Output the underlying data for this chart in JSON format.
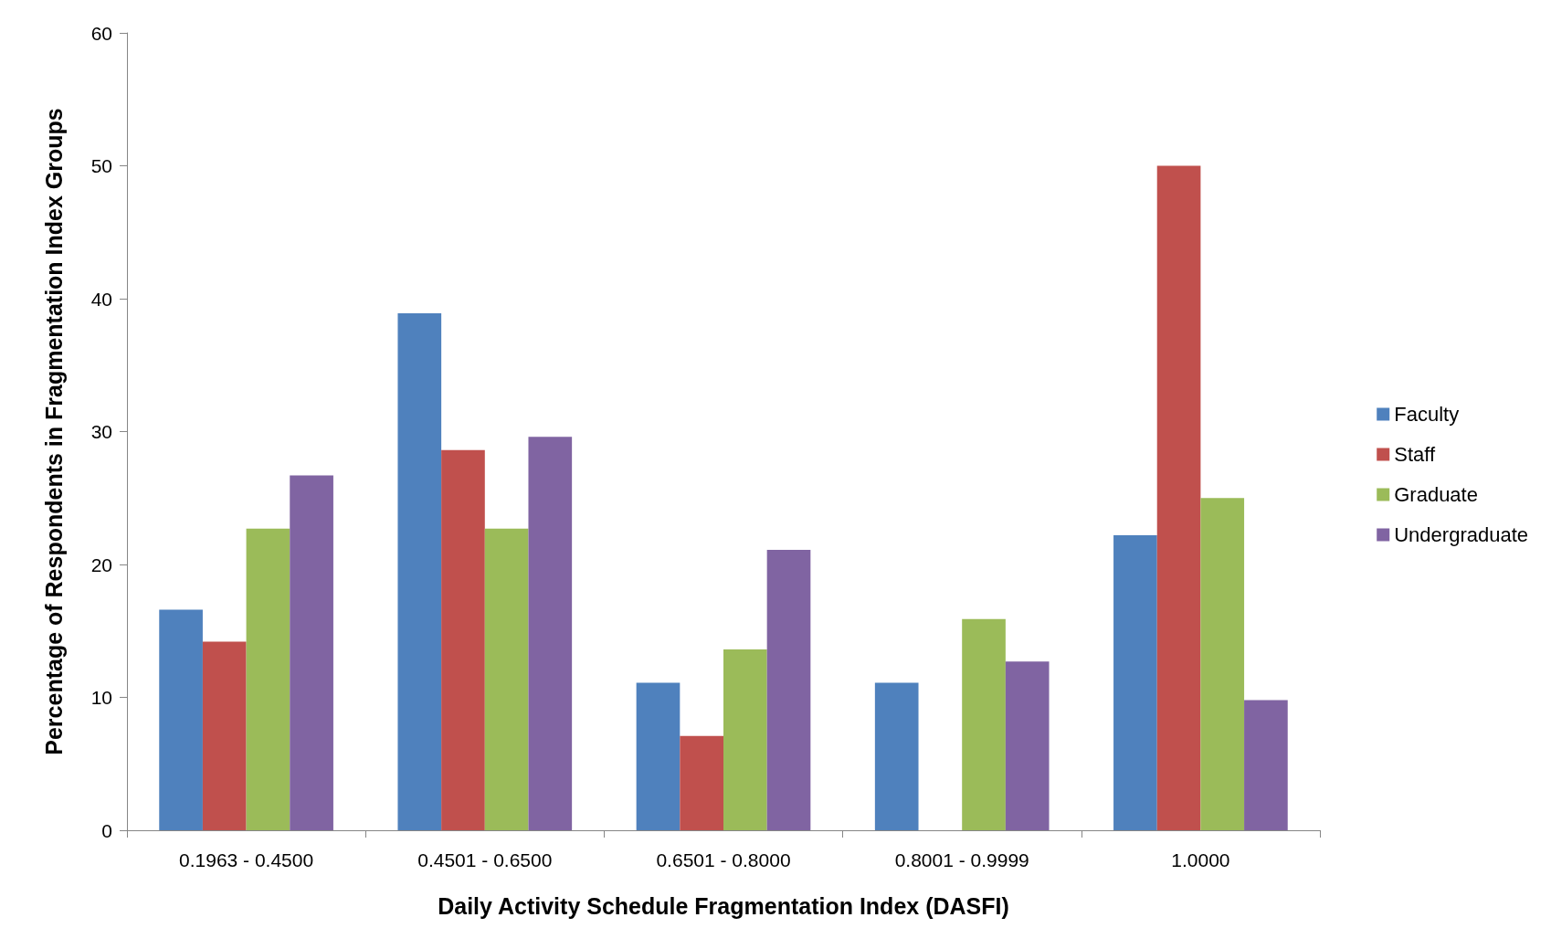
{
  "chart_data": {
    "type": "bar",
    "xlabel": "Daily Activity Schedule Fragmentation Index (DASFI)",
    "ylabel": "Percentage of Respondents in Fragmentation Index Groups",
    "categories": [
      "0.1963 - 0.4500",
      "0.4501 - 0.6500",
      "0.6501 - 0.8000",
      "0.8001 - 0.9999",
      "1.0000"
    ],
    "series": [
      {
        "name": "Faculty",
        "color": "#4f81bd",
        "values": [
          16.6,
          38.9,
          11.1,
          11.1,
          22.2
        ]
      },
      {
        "name": "Staff",
        "color": "#c0504d",
        "values": [
          14.2,
          28.6,
          7.1,
          0,
          50
        ]
      },
      {
        "name": "Graduate",
        "color": "#9bbb59",
        "values": [
          22.7,
          22.7,
          13.6,
          15.9,
          25
        ]
      },
      {
        "name": "Undergraduate",
        "color": "#8064a2",
        "values": [
          26.7,
          29.6,
          21.1,
          12.7,
          9.8
        ]
      }
    ],
    "ylim": [
      0,
      60
    ],
    "yticks": [
      0,
      10,
      20,
      30,
      40,
      50,
      60
    ],
    "grid": false,
    "legend": "right"
  }
}
